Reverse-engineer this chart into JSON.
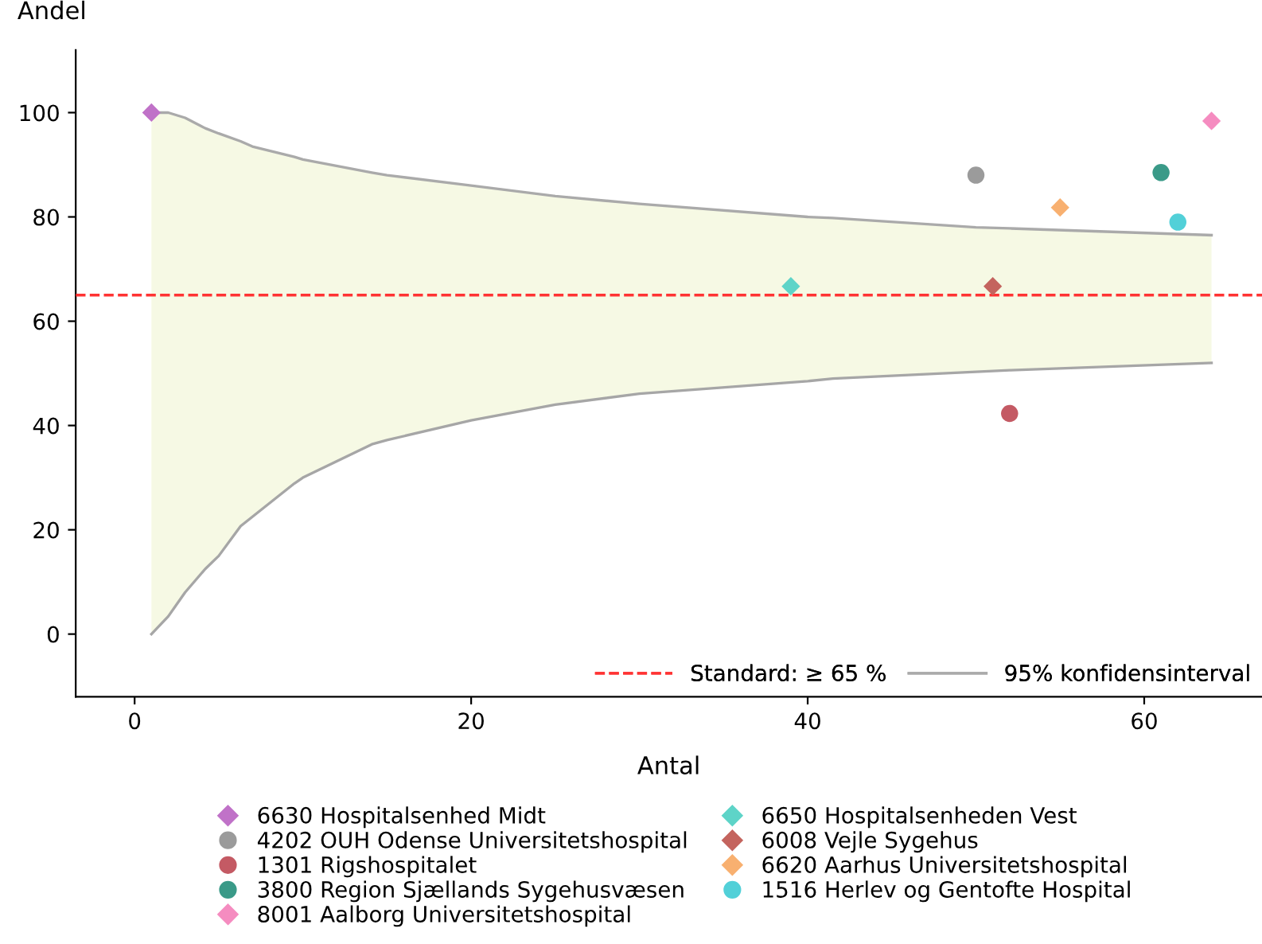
{
  "chart_data": {
    "type": "scatter",
    "xlabel": "Antal",
    "ylabel": "Andel",
    "xlim": [
      -3.5,
      67
    ],
    "xticks": [
      0,
      20,
      40,
      60
    ],
    "ylim": [
      -12,
      112
    ],
    "yticks": [
      0,
      20,
      40,
      60,
      80,
      100
    ],
    "grid": false,
    "legend": "bottom",
    "ref_lines": [
      {
        "axis": "y",
        "value": 65,
        "label": "Standard: ≥ 65 %",
        "color": "#ff3333",
        "line_style": "dashed"
      }
    ],
    "series": [
      {
        "type": "line",
        "name": "95% konfidensinterval",
        "color": "#aaaaaa",
        "x": [
          1,
          2,
          3,
          4.2,
          5,
          6.3,
          7,
          9.5,
          10,
          14.1,
          15,
          20,
          25,
          30,
          40,
          41.5,
          50,
          52,
          64
        ],
        "values": [
          100,
          100,
          99,
          97,
          96,
          94.5,
          93.5,
          91.5,
          91,
          88.5,
          88,
          86,
          84,
          82.5,
          80,
          79.8,
          78,
          77.8,
          76.5
        ],
        "lower": [
          0,
          3.4,
          8,
          12.5,
          15,
          20.7,
          22.5,
          28.9,
          30,
          36.4,
          37.2,
          41,
          44,
          46.1,
          48.5,
          49,
          50.3,
          50.6,
          52
        ],
        "upper": [
          100,
          100,
          99,
          97,
          96,
          94.5,
          93.5,
          91.5,
          91,
          88.5,
          88,
          86,
          84,
          82.5,
          80,
          79.8,
          78,
          77.8,
          76.5
        ]
      },
      {
        "type": "line",
        "color": "#a6a6a6",
        "x": [
          1,
          2,
          3,
          4.2,
          5,
          6.3,
          7,
          9.5,
          10,
          14.1,
          15,
          20,
          25,
          30,
          40,
          41.5,
          50,
          52,
          64
        ],
        "values": [
          0,
          3.4,
          8,
          12.5,
          15,
          20.7,
          22.5,
          28.9,
          30,
          36.4,
          37.2,
          41,
          44,
          46.1,
          48.5,
          49,
          50.3,
          50.6,
          52
        ]
      },
      {
        "name": "6630 Hospitalsenhed Midt",
        "color": "#c072c8",
        "marker": "diamond",
        "x": [
          1
        ],
        "values": [
          100
        ]
      },
      {
        "name": "4202 OUH Odense Universitetshospital",
        "color": "#9b9b9b",
        "marker": "circle",
        "x": [
          50
        ],
        "values": [
          88
        ]
      },
      {
        "name": "1301 Rigshospitalet",
        "color": "#c45a64",
        "marker": "circle",
        "x": [
          52
        ],
        "values": [
          42.3
        ]
      },
      {
        "name": "3800 Region Sjællands Sygehusvæsen",
        "color": "#3a9a88",
        "marker": "circle",
        "x": [
          61
        ],
        "values": [
          88.5
        ]
      },
      {
        "name": "8001 Aalborg Universitetshospital",
        "color": "#f58cc0",
        "marker": "diamond",
        "x": [
          64
        ],
        "values": [
          98.4
        ]
      },
      {
        "name": "6650 Hospitalsenheden Vest",
        "color": "#5ed4c8",
        "marker": "diamond",
        "x": [
          39
        ],
        "values": [
          66.7
        ]
      },
      {
        "name": "6008 Vejle Sygehus",
        "color": "#c4645e",
        "marker": "diamond",
        "x": [
          51
        ],
        "values": [
          66.7
        ]
      },
      {
        "name": "6620 Aarhus Universitetshospital",
        "color": "#f8b070",
        "marker": "diamond",
        "x": [
          55
        ],
        "values": [
          81.8
        ]
      },
      {
        "name": "1516 Herlev og Gentofte Hospital",
        "color": "#52d0d8",
        "marker": "circle",
        "x": [
          62
        ],
        "values": [
          79
        ]
      }
    ]
  }
}
